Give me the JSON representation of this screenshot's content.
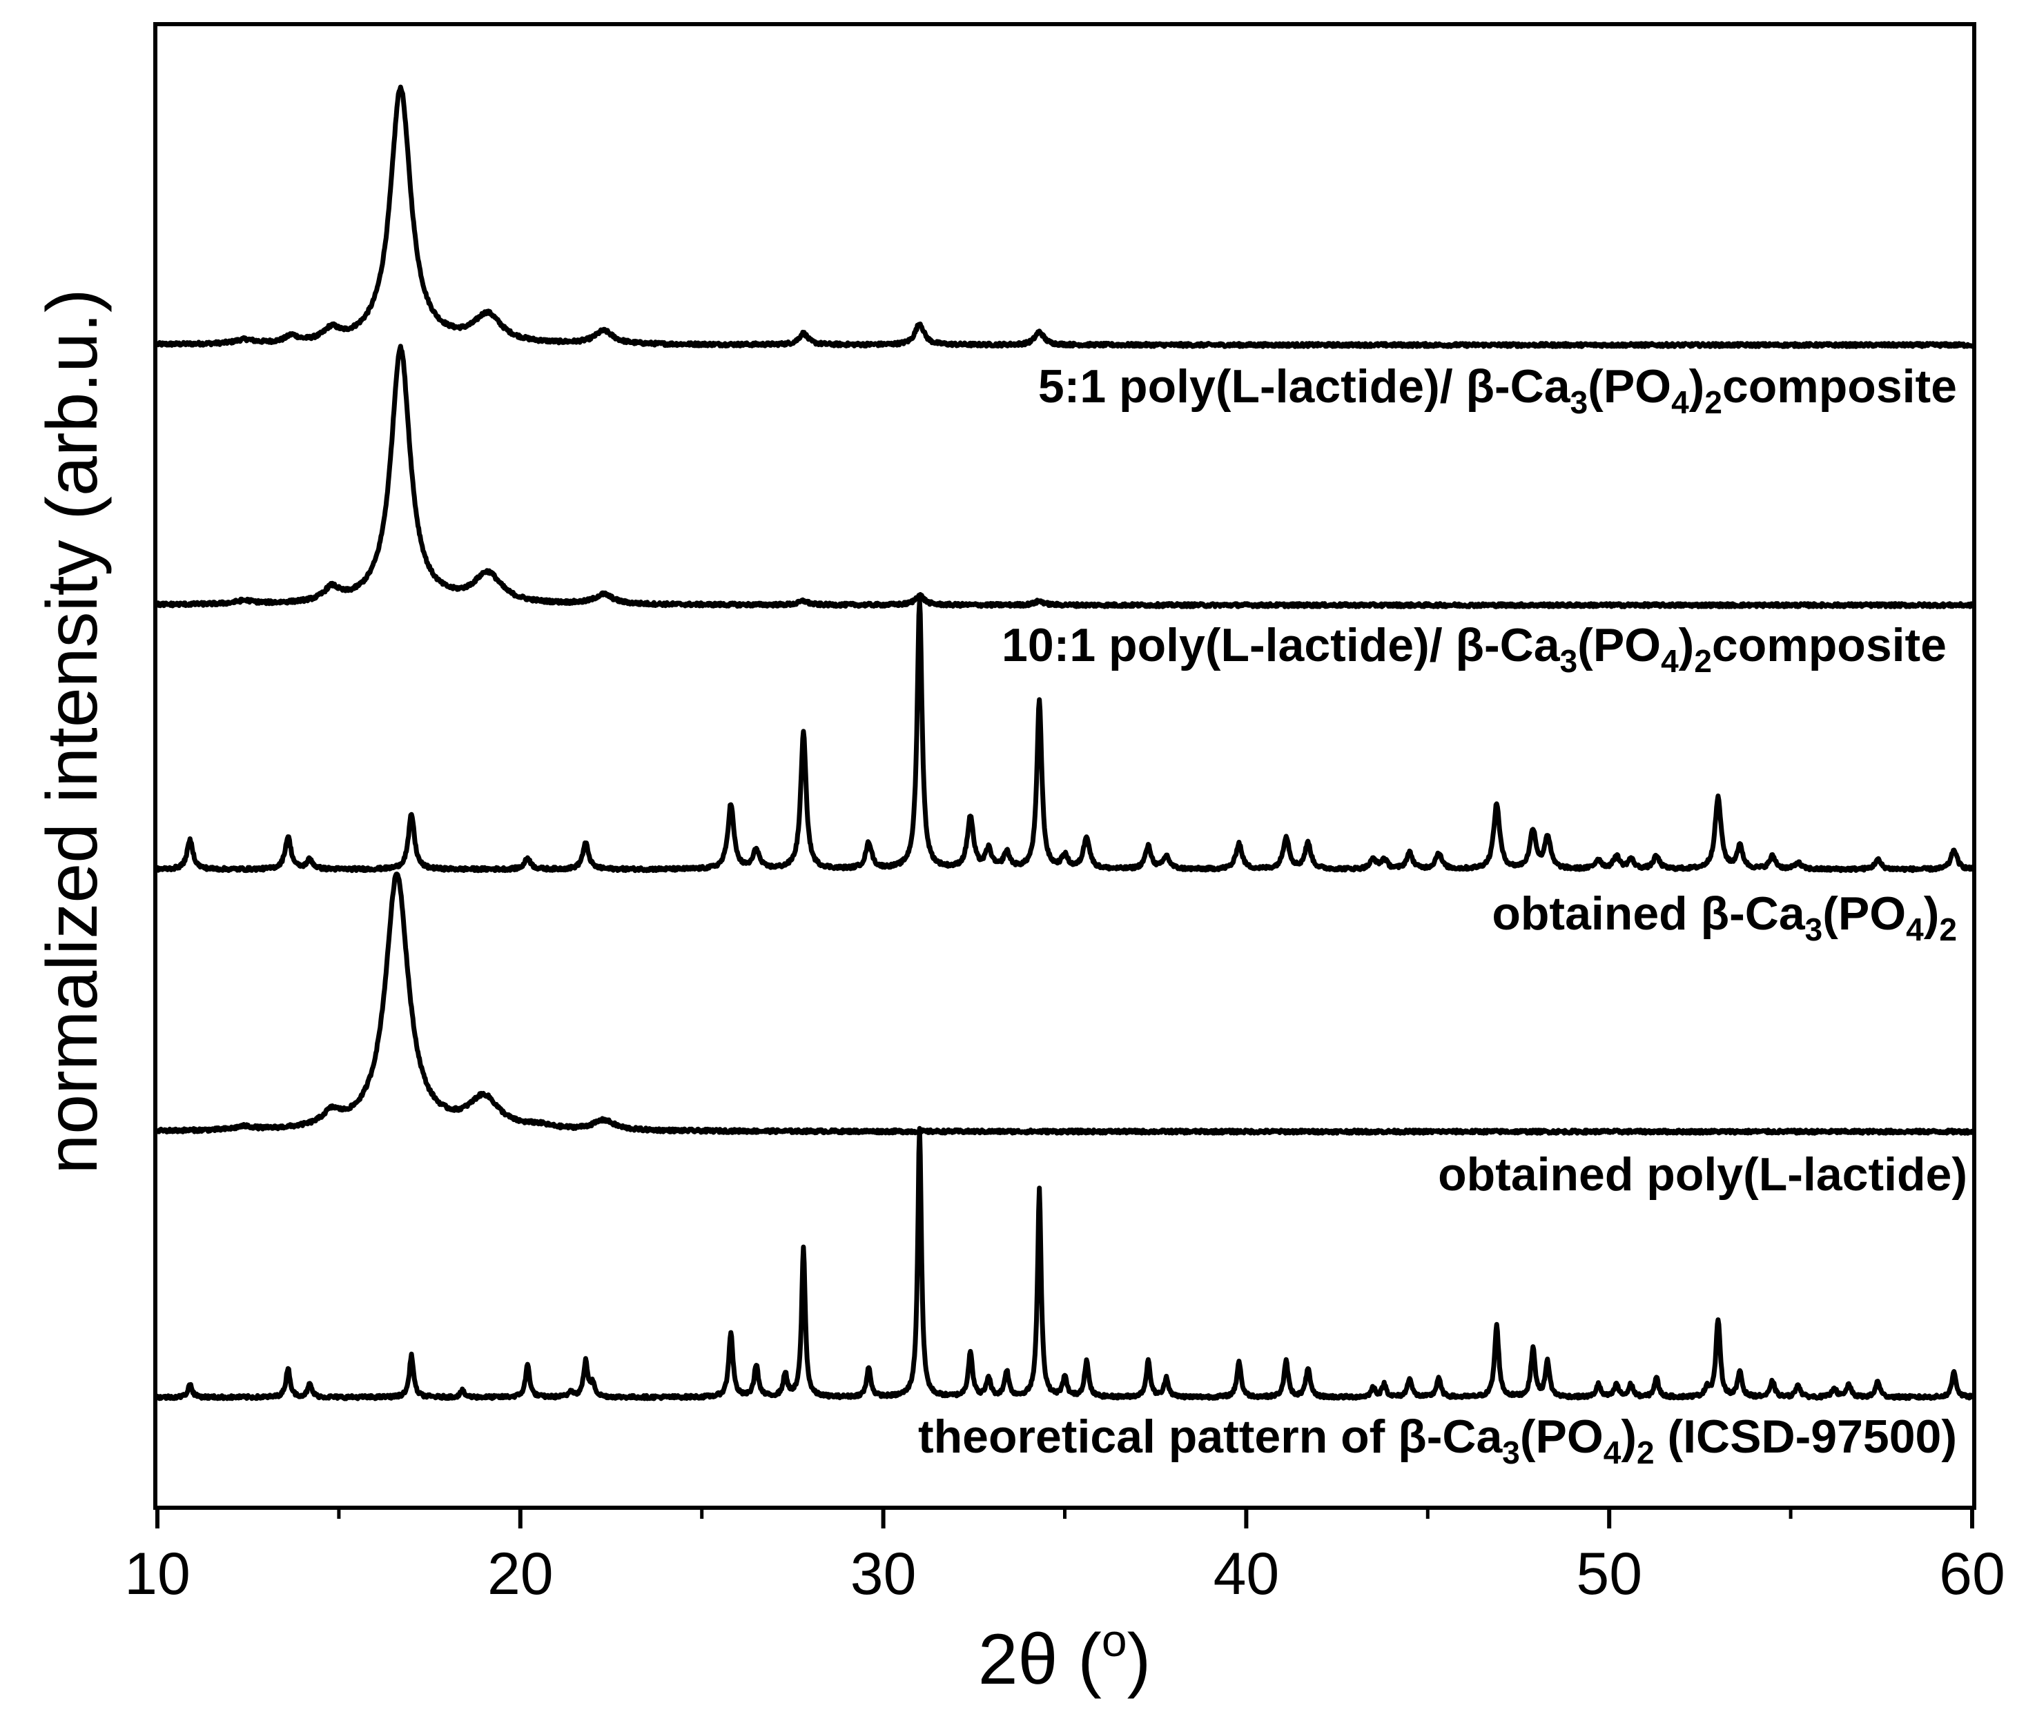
{
  "chart_data": {
    "type": "line",
    "title": "",
    "xlabel": {
      "main": "2θ (",
      "sup": "o",
      "close": ")"
    },
    "ylabel": "normalized intensity (arb.u.)",
    "xlim": [
      10,
      60
    ],
    "x_ticks": [
      10,
      20,
      30,
      40,
      50,
      60
    ],
    "x_tick_labels": [
      "10",
      "20",
      "30",
      "40",
      "50",
      "60"
    ],
    "y_ticks": "none",
    "grid": false,
    "legend": "none",
    "series": [
      {
        "label_parts": [
          {
            "t": "5:1 poly(L-lactide)/ β-Ca"
          },
          {
            "t": "3",
            "sub": true
          },
          {
            "t": "(PO"
          },
          {
            "t": "4",
            "sub": true
          },
          {
            "t": ")"
          },
          {
            "t": "2",
            "sub": true
          },
          {
            "t": "composite"
          }
        ],
        "baseline": 0.83,
        "peaks": [
          [
            14.8,
            0.035,
            0.25
          ],
          [
            16.7,
            0.79,
            0.34
          ],
          [
            19.1,
            0.085,
            0.45
          ],
          [
            22.3,
            0.04,
            0.3
          ],
          [
            27.8,
            0.035,
            0.15
          ],
          [
            31.0,
            0.065,
            0.15
          ],
          [
            34.3,
            0.04,
            0.15
          ],
          [
            12.4,
            0.012,
            0.3
          ],
          [
            13.7,
            0.02,
            0.2
          ]
        ]
      },
      {
        "label_parts": [
          {
            "t": "10:1 poly(L-lactide)/ β-Ca"
          },
          {
            "t": "3",
            "sub": true
          },
          {
            "t": "(PO"
          },
          {
            "t": "4",
            "sub": true
          },
          {
            "t": ")"
          },
          {
            "t": "2",
            "sub": true
          },
          {
            "t": "composite"
          }
        ],
        "baseline": 0.83,
        "peaks": [
          [
            14.8,
            0.04,
            0.25
          ],
          [
            16.7,
            0.79,
            0.32
          ],
          [
            19.1,
            0.09,
            0.45
          ],
          [
            22.3,
            0.03,
            0.3
          ],
          [
            27.8,
            0.012,
            0.15
          ],
          [
            31.0,
            0.03,
            0.15
          ],
          [
            34.3,
            0.012,
            0.15
          ],
          [
            12.4,
            0.01,
            0.3
          ]
        ]
      },
      {
        "label_parts": [
          {
            "t": "obtained β-Ca"
          },
          {
            "t": "3",
            "sub": true
          },
          {
            "t": "(PO"
          },
          {
            "t": "4",
            "sub": true
          },
          {
            "t": ")"
          },
          {
            "t": "2",
            "sub": true
          }
        ],
        "baseline": 0.83,
        "peaks": [
          [
            10.9,
            0.09,
            0.1
          ],
          [
            13.6,
            0.1,
            0.1
          ],
          [
            14.2,
            0.03,
            0.1
          ],
          [
            17.0,
            0.17,
            0.1
          ],
          [
            20.2,
            0.035,
            0.1
          ],
          [
            21.8,
            0.08,
            0.1
          ],
          [
            25.8,
            0.2,
            0.1
          ],
          [
            26.5,
            0.06,
            0.1
          ],
          [
            27.8,
            0.42,
            0.09
          ],
          [
            29.6,
            0.08,
            0.1
          ],
          [
            31.0,
            0.83,
            0.08
          ],
          [
            32.4,
            0.16,
            0.1
          ],
          [
            32.9,
            0.06,
            0.1
          ],
          [
            33.4,
            0.05,
            0.1
          ],
          [
            34.3,
            0.52,
            0.08
          ],
          [
            35.0,
            0.04,
            0.1
          ],
          [
            35.6,
            0.1,
            0.1
          ],
          [
            37.3,
            0.07,
            0.1
          ],
          [
            37.8,
            0.04,
            0.1
          ],
          [
            39.8,
            0.08,
            0.1
          ],
          [
            41.1,
            0.1,
            0.1
          ],
          [
            41.7,
            0.08,
            0.1
          ],
          [
            43.5,
            0.03,
            0.1
          ],
          [
            43.8,
            0.03,
            0.1
          ],
          [
            44.5,
            0.05,
            0.1
          ],
          [
            45.3,
            0.05,
            0.1
          ],
          [
            46.9,
            0.2,
            0.1
          ],
          [
            47.9,
            0.12,
            0.1
          ],
          [
            48.3,
            0.1,
            0.1
          ],
          [
            49.7,
            0.03,
            0.1
          ],
          [
            50.2,
            0.04,
            0.1
          ],
          [
            50.6,
            0.03,
            0.1
          ],
          [
            51.3,
            0.04,
            0.1
          ],
          [
            53.0,
            0.22,
            0.1
          ],
          [
            53.6,
            0.07,
            0.1
          ],
          [
            54.5,
            0.04,
            0.1
          ],
          [
            55.2,
            0.02,
            0.1
          ],
          [
            57.4,
            0.03,
            0.1
          ],
          [
            59.5,
            0.06,
            0.1
          ]
        ]
      },
      {
        "label_parts": [
          {
            "t": "obtained poly(L-lactide)"
          }
        ],
        "baseline": 0.83,
        "peaks": [
          [
            14.8,
            0.04,
            0.3
          ],
          [
            16.6,
            0.79,
            0.38
          ],
          [
            19.0,
            0.095,
            0.5
          ],
          [
            22.3,
            0.03,
            0.35
          ],
          [
            12.4,
            0.01,
            0.3
          ],
          [
            20.5,
            0.01,
            0.4
          ]
        ]
      },
      {
        "label_parts": [
          {
            "t": "theoretical pattern of β-Ca"
          },
          {
            "t": "3",
            "sub": true
          },
          {
            "t": "(PO"
          },
          {
            "t": "4",
            "sub": true
          },
          {
            "t": ")"
          },
          {
            "t": "2",
            "sub": true
          },
          {
            "t": " (ICSD-97500)"
          }
        ],
        "baseline": 0.83,
        "peaks": [
          [
            10.9,
            0.04,
            0.07
          ],
          [
            13.6,
            0.09,
            0.07
          ],
          [
            14.2,
            0.04,
            0.07
          ],
          [
            17.0,
            0.13,
            0.07
          ],
          [
            18.4,
            0.02,
            0.07
          ],
          [
            20.2,
            0.1,
            0.07
          ],
          [
            21.4,
            0.02,
            0.07
          ],
          [
            21.8,
            0.11,
            0.07
          ],
          [
            22.0,
            0.04,
            0.07
          ],
          [
            25.8,
            0.2,
            0.07
          ],
          [
            26.5,
            0.1,
            0.07
          ],
          [
            27.3,
            0.07,
            0.07
          ],
          [
            27.8,
            0.46,
            0.06
          ],
          [
            29.6,
            0.09,
            0.07
          ],
          [
            31.0,
            0.83,
            0.06
          ],
          [
            32.4,
            0.14,
            0.07
          ],
          [
            32.9,
            0.06,
            0.07
          ],
          [
            33.4,
            0.08,
            0.07
          ],
          [
            34.3,
            0.64,
            0.06
          ],
          [
            35.0,
            0.06,
            0.07
          ],
          [
            35.6,
            0.11,
            0.07
          ],
          [
            37.3,
            0.11,
            0.07
          ],
          [
            37.8,
            0.06,
            0.07
          ],
          [
            39.8,
            0.11,
            0.07
          ],
          [
            41.1,
            0.11,
            0.07
          ],
          [
            41.7,
            0.09,
            0.07
          ],
          [
            43.5,
            0.03,
            0.07
          ],
          [
            43.8,
            0.04,
            0.07
          ],
          [
            44.5,
            0.06,
            0.07
          ],
          [
            45.3,
            0.06,
            0.07
          ],
          [
            46.9,
            0.22,
            0.07
          ],
          [
            47.9,
            0.15,
            0.07
          ],
          [
            48.3,
            0.11,
            0.07
          ],
          [
            49.7,
            0.04,
            0.07
          ],
          [
            50.2,
            0.04,
            0.07
          ],
          [
            50.6,
            0.04,
            0.07
          ],
          [
            51.3,
            0.06,
            0.07
          ],
          [
            52.7,
            0.03,
            0.07
          ],
          [
            53.0,
            0.24,
            0.07
          ],
          [
            53.6,
            0.08,
            0.07
          ],
          [
            54.5,
            0.05,
            0.07
          ],
          [
            55.2,
            0.04,
            0.07
          ],
          [
            56.2,
            0.03,
            0.07
          ],
          [
            56.6,
            0.04,
            0.07
          ],
          [
            57.4,
            0.05,
            0.07
          ],
          [
            59.5,
            0.08,
            0.07
          ]
        ]
      }
    ]
  }
}
